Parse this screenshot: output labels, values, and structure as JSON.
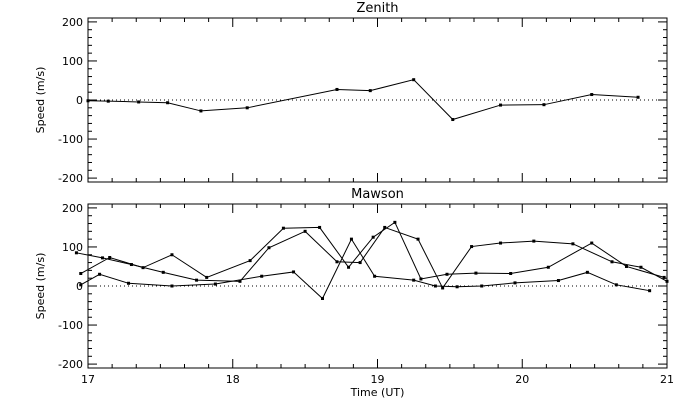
{
  "chart_data": [
    {
      "type": "line",
      "title": "Zenith",
      "xlabel": "",
      "ylabel": "Speed (m/s)",
      "xlim": [
        17,
        21
      ],
      "ylim": [
        -210,
        210
      ],
      "x_ticks": [
        "17",
        "18",
        "19",
        "20",
        "21"
      ],
      "y_ticks": [
        "200",
        "100",
        "0",
        "-100",
        "-200"
      ],
      "y_tick_values": [
        200,
        100,
        0,
        -100,
        -200
      ],
      "zero_line": "dotted",
      "series": [
        {
          "x": [
            17.0,
            17.14,
            17.35,
            17.55,
            17.78,
            18.1,
            18.72,
            18.95,
            19.25,
            19.52,
            19.85,
            20.15,
            20.48,
            20.8
          ],
          "y": [
            -2,
            -3,
            -5,
            -7,
            -28,
            -20,
            27,
            24,
            52,
            -50,
            -13,
            -12,
            14,
            7
          ]
        }
      ]
    },
    {
      "type": "line",
      "title": "Mawson",
      "xlabel": "Time (UT)",
      "ylabel": "Speed (m/s)",
      "xlim": [
        17,
        21
      ],
      "ylim": [
        -210,
        210
      ],
      "x_ticks": [
        "17",
        "18",
        "19",
        "20",
        "21"
      ],
      "y_ticks": [
        "200",
        "100",
        "0",
        "-100",
        "-200"
      ],
      "y_tick_values": [
        200,
        100,
        0,
        -100,
        -200
      ],
      "zero_line": "dotted",
      "series": [
        {
          "x": [
            16.95,
            17.08,
            17.28,
            17.58,
            17.88,
            18.2,
            18.42,
            18.62,
            18.82,
            18.98,
            19.25,
            19.4,
            19.55,
            19.72,
            19.95,
            20.25,
            20.45,
            20.65,
            20.88
          ],
          "y": [
            3,
            30,
            7,
            0,
            5,
            25,
            36,
            -32,
            120,
            25,
            15,
            0,
            -2,
            0,
            8,
            14,
            35,
            3,
            -12
          ]
        },
        {
          "x": [
            16.95,
            17.15,
            17.38,
            17.58,
            17.82,
            18.12,
            18.35,
            18.6,
            18.8,
            18.97,
            19.12,
            19.3,
            19.48,
            19.68,
            19.92,
            20.18,
            20.48,
            20.72,
            20.98
          ],
          "y": [
            32,
            73,
            47,
            80,
            22,
            65,
            148,
            150,
            48,
            125,
            163,
            18,
            30,
            33,
            32,
            48,
            110,
            50,
            22
          ]
        },
        {
          "x": [
            16.92,
            17.1,
            17.3,
            17.52,
            17.75,
            18.05,
            18.25,
            18.5,
            18.72,
            18.88,
            19.05,
            19.28,
            19.45,
            19.65,
            19.85,
            20.08,
            20.35,
            20.62,
            20.82,
            21.0
          ],
          "y": [
            85,
            72,
            55,
            35,
            15,
            12,
            98,
            140,
            62,
            60,
            150,
            120,
            -5,
            101,
            110,
            115,
            108,
            62,
            48,
            12
          ]
        }
      ]
    }
  ]
}
